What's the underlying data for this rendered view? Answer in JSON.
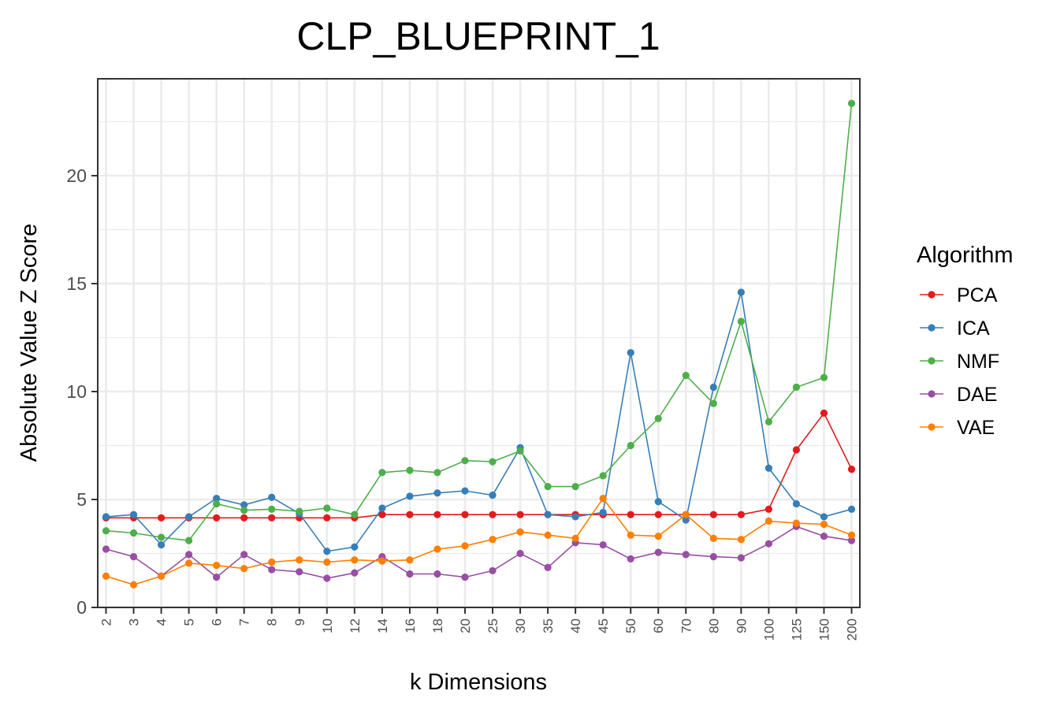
{
  "chart_data": {
    "type": "line",
    "title": "CLP_BLUEPRINT_1",
    "xlabel": "k Dimensions",
    "ylabel": "Absolute Value Z Score",
    "categories": [
      "2",
      "3",
      "4",
      "5",
      "6",
      "7",
      "8",
      "9",
      "10",
      "12",
      "14",
      "16",
      "18",
      "20",
      "25",
      "30",
      "35",
      "40",
      "45",
      "50",
      "60",
      "70",
      "80",
      "90",
      "100",
      "125",
      "150",
      "200"
    ],
    "ylim": [
      0,
      24
    ],
    "yticks": [
      0,
      5,
      10,
      15,
      20
    ],
    "grid": true,
    "legend": {
      "title": "Algorithm",
      "position": "right"
    },
    "series": [
      {
        "name": "PCA",
        "color": "#e41a1c",
        "values": [
          4.15,
          4.15,
          4.15,
          4.15,
          4.15,
          4.15,
          4.15,
          4.15,
          4.15,
          4.15,
          4.3,
          4.3,
          4.3,
          4.3,
          4.3,
          4.3,
          4.3,
          4.3,
          4.3,
          4.3,
          4.3,
          4.3,
          4.3,
          4.3,
          4.55,
          7.3,
          9.0,
          6.4
        ]
      },
      {
        "name": "ICA",
        "color": "#377eb8",
        "values": [
          4.2,
          4.3,
          2.9,
          4.2,
          5.05,
          4.75,
          5.1,
          4.35,
          2.6,
          2.8,
          4.6,
          5.15,
          5.3,
          5.4,
          5.2,
          7.4,
          4.3,
          4.2,
          4.4,
          11.8,
          4.9,
          4.05,
          10.2,
          14.6,
          6.45,
          4.8,
          4.2,
          4.55
        ]
      },
      {
        "name": "NMF",
        "color": "#4daf4a",
        "values": [
          3.55,
          3.45,
          3.25,
          3.1,
          4.8,
          4.5,
          4.55,
          4.45,
          4.6,
          4.3,
          6.25,
          6.35,
          6.25,
          6.8,
          6.75,
          7.25,
          5.6,
          5.6,
          6.1,
          7.5,
          8.75,
          10.75,
          9.45,
          13.25,
          8.6,
          10.2,
          10.65,
          23.35
        ]
      },
      {
        "name": "DAE",
        "color": "#984ea3",
        "values": [
          2.7,
          2.35,
          1.45,
          2.45,
          1.4,
          2.45,
          1.75,
          1.65,
          1.35,
          1.6,
          2.35,
          1.55,
          1.55,
          1.4,
          1.7,
          2.5,
          1.85,
          3.0,
          2.9,
          2.25,
          2.55,
          2.45,
          2.35,
          2.3,
          2.95,
          3.75,
          3.3,
          3.1
        ]
      },
      {
        "name": "VAE",
        "color": "#ff7f00",
        "values": [
          1.45,
          1.05,
          1.45,
          2.05,
          1.95,
          1.8,
          2.1,
          2.2,
          2.1,
          2.2,
          2.15,
          2.2,
          2.7,
          2.85,
          3.15,
          3.5,
          3.35,
          3.2,
          5.05,
          3.35,
          3.3,
          4.3,
          3.2,
          3.15,
          4.0,
          3.9,
          3.85,
          3.35
        ]
      }
    ]
  }
}
